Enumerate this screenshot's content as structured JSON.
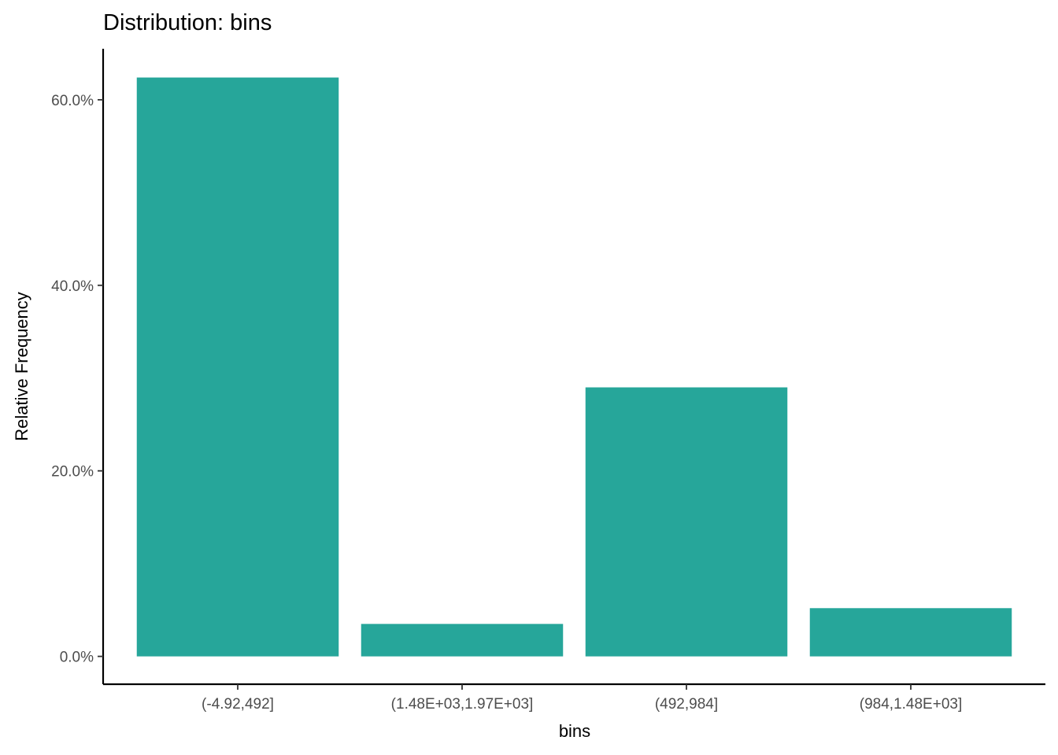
{
  "chart_data": {
    "type": "bar",
    "title": "Distribution: bins",
    "xlabel": "bins",
    "ylabel": "Relative Frequency",
    "categories": [
      "(-4.92,492]",
      "(1.48E+03,1.97E+03]",
      "(492,984]",
      "(984,1.48E+03]"
    ],
    "values": [
      0.624,
      0.035,
      0.29,
      0.052
    ],
    "ylim": [
      -0.03,
      0.655
    ],
    "yticks": [
      0,
      0.2,
      0.4,
      0.6
    ],
    "ytick_labels": [
      "0.0%",
      "20.0%",
      "40.0%",
      "60.0%"
    ],
    "bar_color": "#26A69A",
    "grid": false,
    "legend": "none"
  }
}
